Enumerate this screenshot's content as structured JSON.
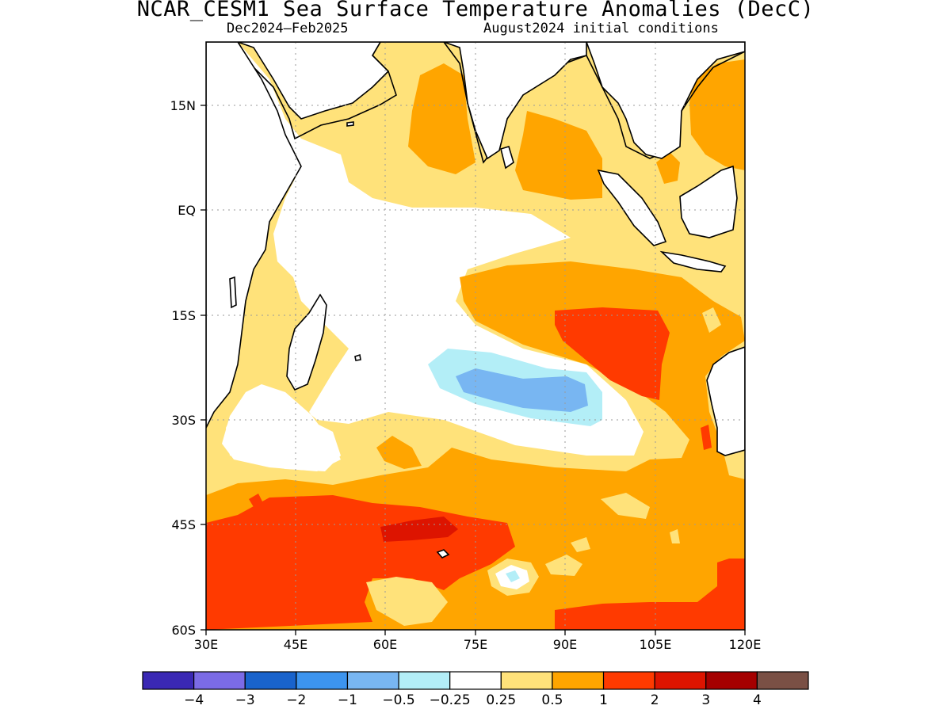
{
  "title": "NCAR_CESM1 Sea Surface Temperature Anomalies (DecC)",
  "subtitle_left": "Dec2024–Feb2025",
  "subtitle_right": "August2024 initial conditions",
  "lat_labels": [
    "15N",
    "EQ",
    "15S",
    "30S",
    "45S",
    "60S"
  ],
  "lon_labels": [
    "30E",
    "45E",
    "60E",
    "75E",
    "90E",
    "105E",
    "120E"
  ],
  "colorbar": {
    "colors": [
      "#3a28b4",
      "#7b6be6",
      "#1963cc",
      "#3c94ef",
      "#78b6f2",
      "#b3eef7",
      "#ffffff",
      "#ffe27a",
      "#ffa500",
      "#ff3a00",
      "#dd1400",
      "#a50000",
      "#7a5045"
    ],
    "labels": [
      "−4",
      "−3",
      "−2",
      "−1",
      "−0.5",
      "−0.25",
      "0.25",
      "0.5",
      "1",
      "2",
      "3",
      "4"
    ]
  },
  "palette": {
    "white": "#ffffff",
    "light_yellow": "#ffe27a",
    "orange": "#ffa500",
    "red_orange": "#ff3a00",
    "dark_red": "#dd1400",
    "light_cyan": "#b3eef7",
    "light_blue": "#78b6f2"
  }
}
